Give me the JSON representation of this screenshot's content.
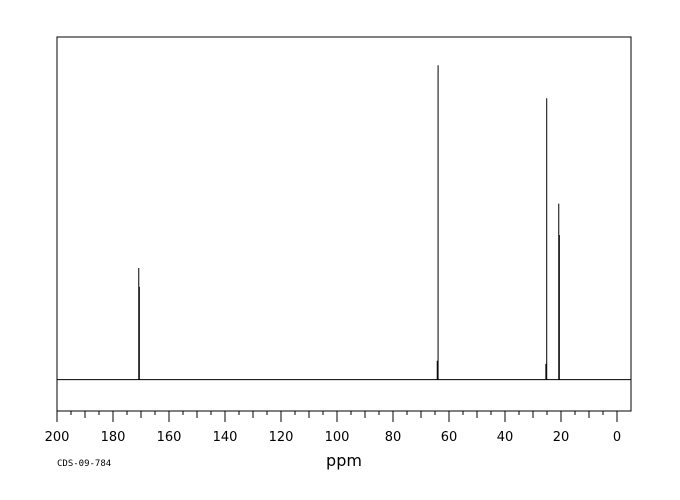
{
  "chart_data": {
    "type": "line",
    "title": "",
    "xlabel": "ppm",
    "ylabel": "",
    "xlim": [
      200,
      -5
    ],
    "x_reversed": true,
    "ylim": [
      -0.1,
      1.09
    ],
    "grid": false,
    "x_ticks": [
      "200",
      "180",
      "160",
      "140",
      "120",
      "100",
      "80",
      "60",
      "40",
      "20",
      "0"
    ],
    "x_tick_values": [
      200,
      180,
      160,
      140,
      120,
      100,
      80,
      60,
      40,
      20,
      0
    ],
    "line_color": "#000000",
    "series": [
      {
        "peaks": [
          {
            "x": 170.8,
            "y": 0.355
          },
          {
            "x": 170.6,
            "y": 0.295
          },
          {
            "x": 64.2,
            "y": 0.06
          },
          {
            "x": 63.9,
            "y": 1.0
          },
          {
            "x": 25.4,
            "y": 0.05
          },
          {
            "x": 25.1,
            "y": 0.895
          },
          {
            "x": 20.8,
            "y": 0.56
          },
          {
            "x": 20.6,
            "y": 0.46
          }
        ]
      }
    ]
  },
  "footer": {
    "code": "CDS-09-784"
  }
}
